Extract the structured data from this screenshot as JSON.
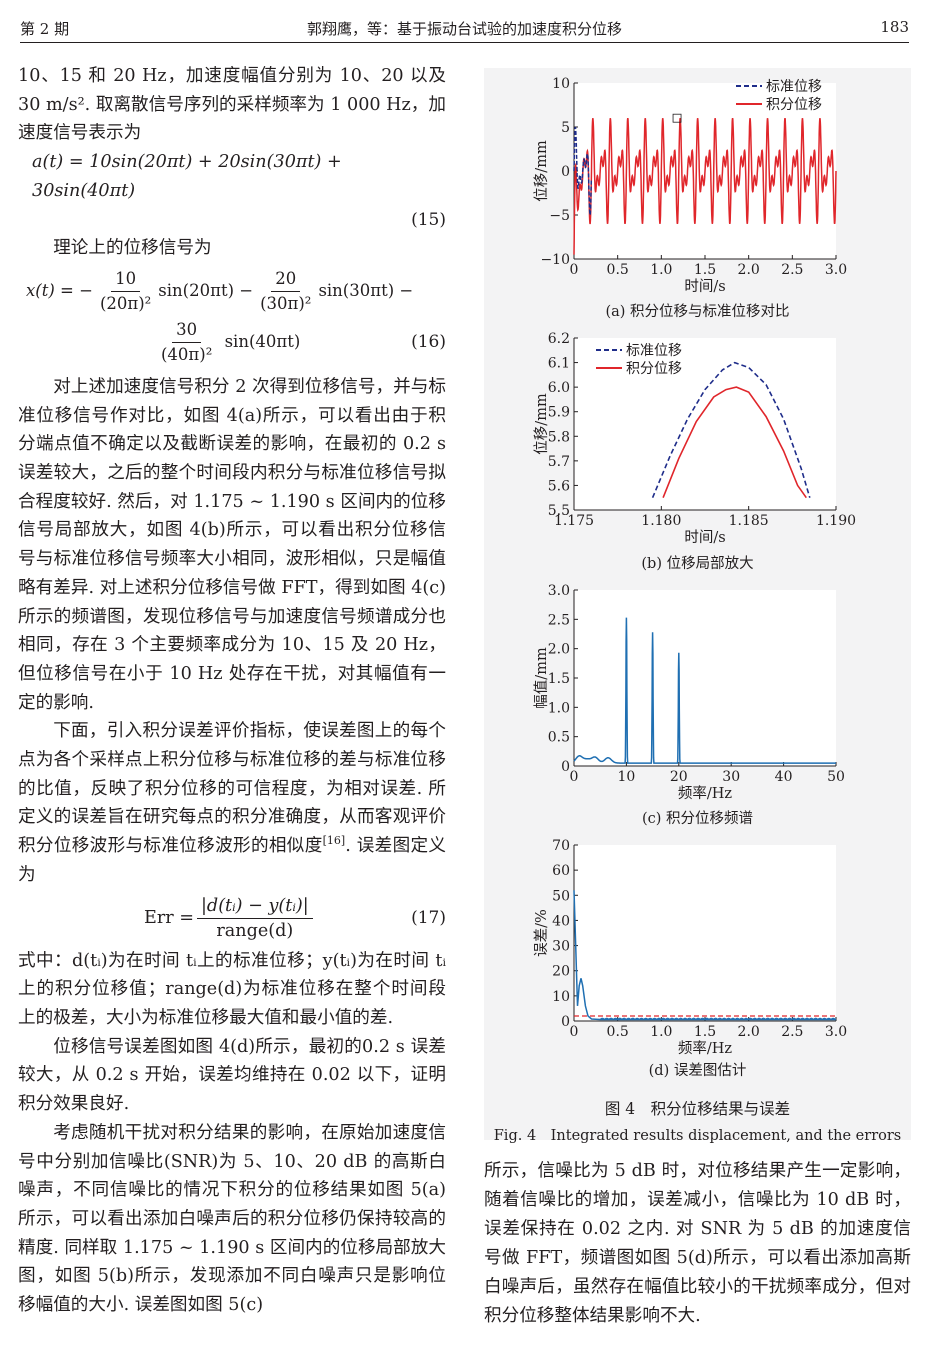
{
  "header": {
    "issue": "第 2 期",
    "title": "郭翔鹰，等：基于振动台试验的加速度积分位移",
    "page": "183"
  },
  "left_column": {
    "p1": "10、15 和 20 Hz，加速度幅值分别为 10、20 以及 30 m/s². 取离散信号序列的采样频率为 1 000 Hz，加速度信号表示为",
    "eq15": "a(t) = 10sin(20πt) + 20sin(30πt) + 30sin(40πt)",
    "eq15_no": "(15)",
    "p2": "理论上的位移信号为",
    "eq16_lhs": "x(t) = −",
    "eq16_n1": "10",
    "eq16_d1": "(20π)²",
    "eq16_t1": "sin(20πt) −",
    "eq16_n2": "20",
    "eq16_d2": "(30π)²",
    "eq16_t2": "sin(30πt) −",
    "eq16_n3": "30",
    "eq16_d3": "(40π)²",
    "eq16_t3": "sin(40πt)",
    "eq16_no": "(16)",
    "p3": "对上述加速度信号积分 2 次得到位移信号，并与标准位移信号作对比，如图 4(a)所示，可以看出由于积分端点值不确定以及截断误差的影响，在最初的 0.2 s 误差较大，之后的整个时间段内积分与标准位移信号拟合程度较好. 然后，对 1.175 ~ 1.190 s 区间内的位移信号局部放大，如图 4(b)所示，可以看出积分位移信号与标准位移信号频率大小相同，波形相似，只是幅值略有差异. 对上述积分位移信号做 FFT，得到如图 4(c)所示的频谱图，发现位移信号与加速度信号频谱成分也相同，存在 3 个主要频率成分为 10、15 及 20 Hz，但位移信号在小于 10 Hz 处存在干扰，对其幅值有一定的影响.",
    "p4": "下面，引入积分误差评价指标，使误差图上的每个点为各个采样点上积分位移与标准位移的差与标准位移的比值，反映了积分位移的可信程度，为相对误差. 所定义的误差旨在研究每点的积分准确度，从而客观评价积分位移波形与标准位移波形的相似度",
    "p4_ref": "[16]",
    "p4_end": ". 误差图定义为",
    "eq17_lhs": "Err =",
    "eq17_num": "|d(tᵢ) − y(tᵢ)|",
    "eq17_den": "range(d)",
    "eq17_no": "(17)",
    "p5": "式中：d(tᵢ)为在时间 tᵢ上的标准位移；y(tᵢ)为在时间 tᵢ上的积分位移值；range(d)为标准位移在整个时间段上的极差，大小为标准位移最大值和最小值的差.",
    "p6": "位移信号误差图如图 4(d)所示，最初的0.2 s 误差较大，从 0.2 s 开始，误差均维持在 0.02 以下，证明积分效果良好.",
    "p7": "考虑随机干扰对积分结果的影响，在原始加速度信号中分别加信噪比(SNR)为 5、10、20 dB 的高斯白噪声，不同信噪比的情况下积分的位移结果如图 5(a)所示，可以看出添加白噪声后的积分位移仍保持较高的精度. 同样取 1.175 ~ 1.190 s 区间内的位移局部放大图，如图 5(b)所示，发现添加不同白噪声只是影响位移幅值的大小. 误差图如图 5(c)"
  },
  "right_column": {
    "p1": "所示，信噪比为 5 dB 时，对位移结果产生一定影响，随着信噪比的增加，误差减小，信噪比为 10 dB 时，误差保持在 0.02 之内. 对 SNR 为 5 dB 的加速度信号做 FFT，频谱图如图 5(d)所示，可以看出添加高斯白噪声后，虽然存在幅值比较小的干扰频率成分，但对积分位移整体结果影响不大."
  },
  "figure": {
    "caption_cn": "图 4　积分位移结果与误差",
    "caption_en": "Fig. 4　Integrated results displacement, and the errors",
    "colors": {
      "standard": "#1f2d8a",
      "integrated": "#e0262b",
      "spectrum": "#1f6fb2",
      "threshold": "#e0262b"
    }
  },
  "chart_data": [
    {
      "type": "line",
      "caption": "(a) 积分位移与标准位移对比",
      "xlabel": "时间/s",
      "ylabel": "位移/mm",
      "xlim": [
        0,
        3.0
      ],
      "ylim": [
        -10,
        10
      ],
      "xticks": [
        "0",
        "0.5",
        "1.0",
        "1.5",
        "2.0",
        "2.5",
        "3.0"
      ],
      "yticks": [
        "−10",
        "−5",
        "0",
        "5",
        "10"
      ],
      "legend": "top-right",
      "series": [
        {
          "name": "标准位移",
          "style": "dashed",
          "signal": "10/(20π)²·sin(20πt)·1000 − …",
          "amplitude_mm": 5.0,
          "frequencies_hz": [
            10,
            15,
            20
          ],
          "coefficients": [
            10,
            20,
            30
          ]
        },
        {
          "name": "积分位移",
          "style": "solid",
          "amplitude_mm": 6.0,
          "transient": {
            "t_end_s": 0.2,
            "min_mm": -9.5
          },
          "frequencies_hz": [
            10,
            15,
            20
          ]
        }
      ]
    },
    {
      "type": "line",
      "caption": "(b) 位移局部放大",
      "xlabel": "时间/s",
      "ylabel": "位移/mm",
      "xlim": [
        1.175,
        1.19
      ],
      "ylim": [
        5.5,
        6.2
      ],
      "xticks": [
        "1.175",
        "1.180",
        "1.185",
        "1.190"
      ],
      "yticks": [
        "5.5",
        "5.6",
        "5.7",
        "5.8",
        "5.9",
        "6.0",
        "6.1",
        "6.2"
      ],
      "legend": "top-left",
      "series": [
        {
          "name": "标准位移",
          "style": "dashed",
          "x": [
            1.1795,
            1.1805,
            1.1815,
            1.1825,
            1.1835,
            1.1842,
            1.185,
            1.186,
            1.187,
            1.188,
            1.1885
          ],
          "y": [
            5.55,
            5.72,
            5.87,
            5.99,
            6.07,
            6.1,
            6.08,
            6.01,
            5.87,
            5.67,
            5.55
          ]
        },
        {
          "name": "积分位移",
          "style": "solid",
          "x": [
            1.1801,
            1.181,
            1.182,
            1.183,
            1.1837,
            1.1843,
            1.185,
            1.186,
            1.187,
            1.1878,
            1.1883
          ],
          "y": [
            5.55,
            5.71,
            5.86,
            5.96,
            5.99,
            6.0,
            5.98,
            5.88,
            5.74,
            5.6,
            5.55
          ]
        }
      ]
    },
    {
      "type": "line",
      "caption": "(c) 积分位移频谱",
      "xlabel": "频率/Hz",
      "ylabel": "幅值/mm",
      "xlim": [
        0,
        50
      ],
      "ylim": [
        0,
        3.0
      ],
      "xticks": [
        "0",
        "10",
        "20",
        "30",
        "40",
        "50"
      ],
      "yticks": [
        "0",
        "0.5",
        "1.0",
        "1.5",
        "2.0",
        "2.5",
        "3.0"
      ],
      "series": [
        {
          "name": "",
          "peaks": [
            {
              "x": 10,
              "y": 2.53
            },
            {
              "x": 15,
              "y": 2.28
            },
            {
              "x": 20,
              "y": 1.93
            }
          ],
          "low_freq_bump": [
            {
              "x": 1.0,
              "y": 0.12
            },
            {
              "x": 2.5,
              "y": 0.06
            },
            {
              "x": 4.0,
              "y": 0.1
            },
            {
              "x": 6.5,
              "y": 0.09
            }
          ],
          "baseline": 0.05
        }
      ]
    },
    {
      "type": "line",
      "caption": "(d) 误差图估计",
      "xlabel": "频率/Hz",
      "ylabel": "误差/%",
      "xlim": [
        0,
        3.0
      ],
      "ylim": [
        0,
        70
      ],
      "xticks": [
        "0",
        "0.5",
        "1.0",
        "1.5",
        "2.0",
        "2.5",
        "3.0"
      ],
      "yticks": [
        "0",
        "10",
        "20",
        "30",
        "40",
        "50",
        "60",
        "70"
      ],
      "series": [
        {
          "name": "",
          "x": [
            0.0,
            0.02,
            0.04,
            0.06,
            0.08,
            0.1,
            0.13,
            0.16,
            0.2,
            0.3,
            3.0
          ],
          "y": [
            52,
            30,
            6,
            14,
            17,
            14,
            6,
            2,
            0.8,
            0.6,
            0.6
          ]
        }
      ],
      "threshold": 2
    }
  ]
}
